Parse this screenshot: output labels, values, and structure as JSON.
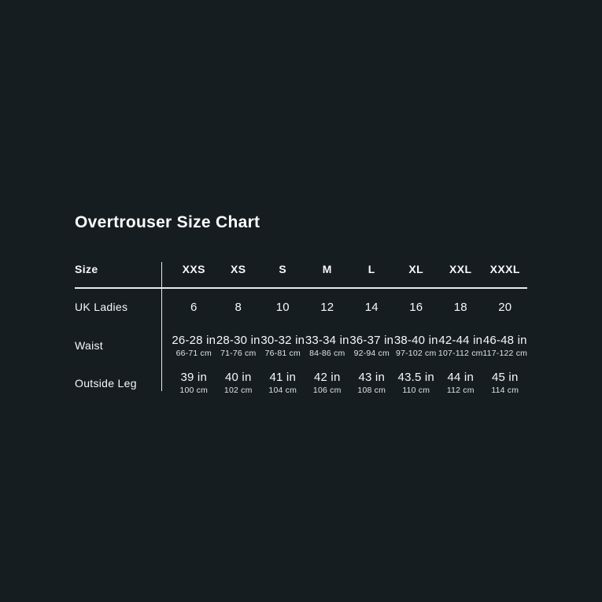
{
  "page": {
    "background_color": "#151d21",
    "text_color": "#f7f8f8",
    "divider_color": "#e8ebeb"
  },
  "title": "Overtrouser Size Chart",
  "table": {
    "header": [
      "Size",
      "XXS",
      "XS",
      "S",
      "M",
      "L",
      "XL",
      "XXL",
      "XXXL"
    ],
    "rows": [
      {
        "label": "UK Ladies",
        "values": [
          {
            "main": "6"
          },
          {
            "main": "8"
          },
          {
            "main": "10"
          },
          {
            "main": "12"
          },
          {
            "main": "14"
          },
          {
            "main": "16"
          },
          {
            "main": "18"
          },
          {
            "main": "20"
          }
        ]
      },
      {
        "label": "Waist",
        "values": [
          {
            "main": "26-28 in",
            "sub": "66-71 cm"
          },
          {
            "main": "28-30 in",
            "sub": "71-76 cm"
          },
          {
            "main": "30-32 in",
            "sub": "76-81 cm"
          },
          {
            "main": "33-34 in",
            "sub": "84-86 cm"
          },
          {
            "main": "36-37 in",
            "sub": "92-94 cm"
          },
          {
            "main": "38-40 in",
            "sub": "97-102 cm"
          },
          {
            "main": "42-44 in",
            "sub": "107-112 cm"
          },
          {
            "main": "46-48 in",
            "sub": "117-122 cm"
          }
        ]
      },
      {
        "label": "Outside Leg",
        "values": [
          {
            "main": "39 in",
            "sub": "100 cm"
          },
          {
            "main": "40 in",
            "sub": "102 cm"
          },
          {
            "main": "41 in",
            "sub": "104 cm"
          },
          {
            "main": "42 in",
            "sub": "106 cm"
          },
          {
            "main": "43 in",
            "sub": "108 cm"
          },
          {
            "main": "43.5 in",
            "sub": "110 cm"
          },
          {
            "main": "44 in",
            "sub": "112 cm"
          },
          {
            "main": "45 in",
            "sub": "114 cm"
          }
        ]
      }
    ]
  }
}
